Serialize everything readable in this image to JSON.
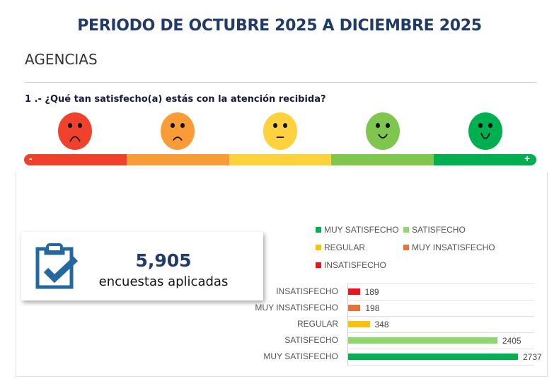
{
  "header": {
    "title": "PERIODO DE OCTUBRE 2025 A DICIEMBRE 2025",
    "section": "AGENCIAS",
    "question": "1 .- ¿Qué tan satisfecho(a) estás con la atención recibida?"
  },
  "scale": {
    "minus": "-",
    "plus": "+",
    "colors": [
      "#f0412c",
      "#f99b36",
      "#fdd23c",
      "#7ec64e",
      "#00b050"
    ],
    "faces": [
      "very-sad-face-icon",
      "sad-face-icon",
      "neutral-face-icon",
      "happy-face-icon",
      "very-happy-face-icon"
    ]
  },
  "summary": {
    "icon": "clipboard-check-icon",
    "count": "5,905",
    "label": "encuestas aplicadas"
  },
  "chart_data": {
    "type": "bar",
    "orientation": "horizontal",
    "categories": [
      "INSATISFECHO",
      "MUY INSATISFECHO",
      "REGULAR",
      "SATISFECHO",
      "MUY SATISFECHO"
    ],
    "values": [
      189,
      198,
      348,
      2405,
      2737
    ],
    "colors": [
      "#e8161b",
      "#e5733a",
      "#f9c00c",
      "#8fd870",
      "#00b050"
    ],
    "legend": [
      {
        "name": "MUY SATISFECHO",
        "color": "#00b050"
      },
      {
        "name": "SATISFECHO",
        "color": "#8fd870"
      },
      {
        "name": "REGULAR",
        "color": "#f9c00c"
      },
      {
        "name": "MUY INSATISFECHO",
        "color": "#e5733a"
      },
      {
        "name": "INSATISFECHO",
        "color": "#e8161b"
      }
    ],
    "legend_position": "top",
    "grid": true
  }
}
